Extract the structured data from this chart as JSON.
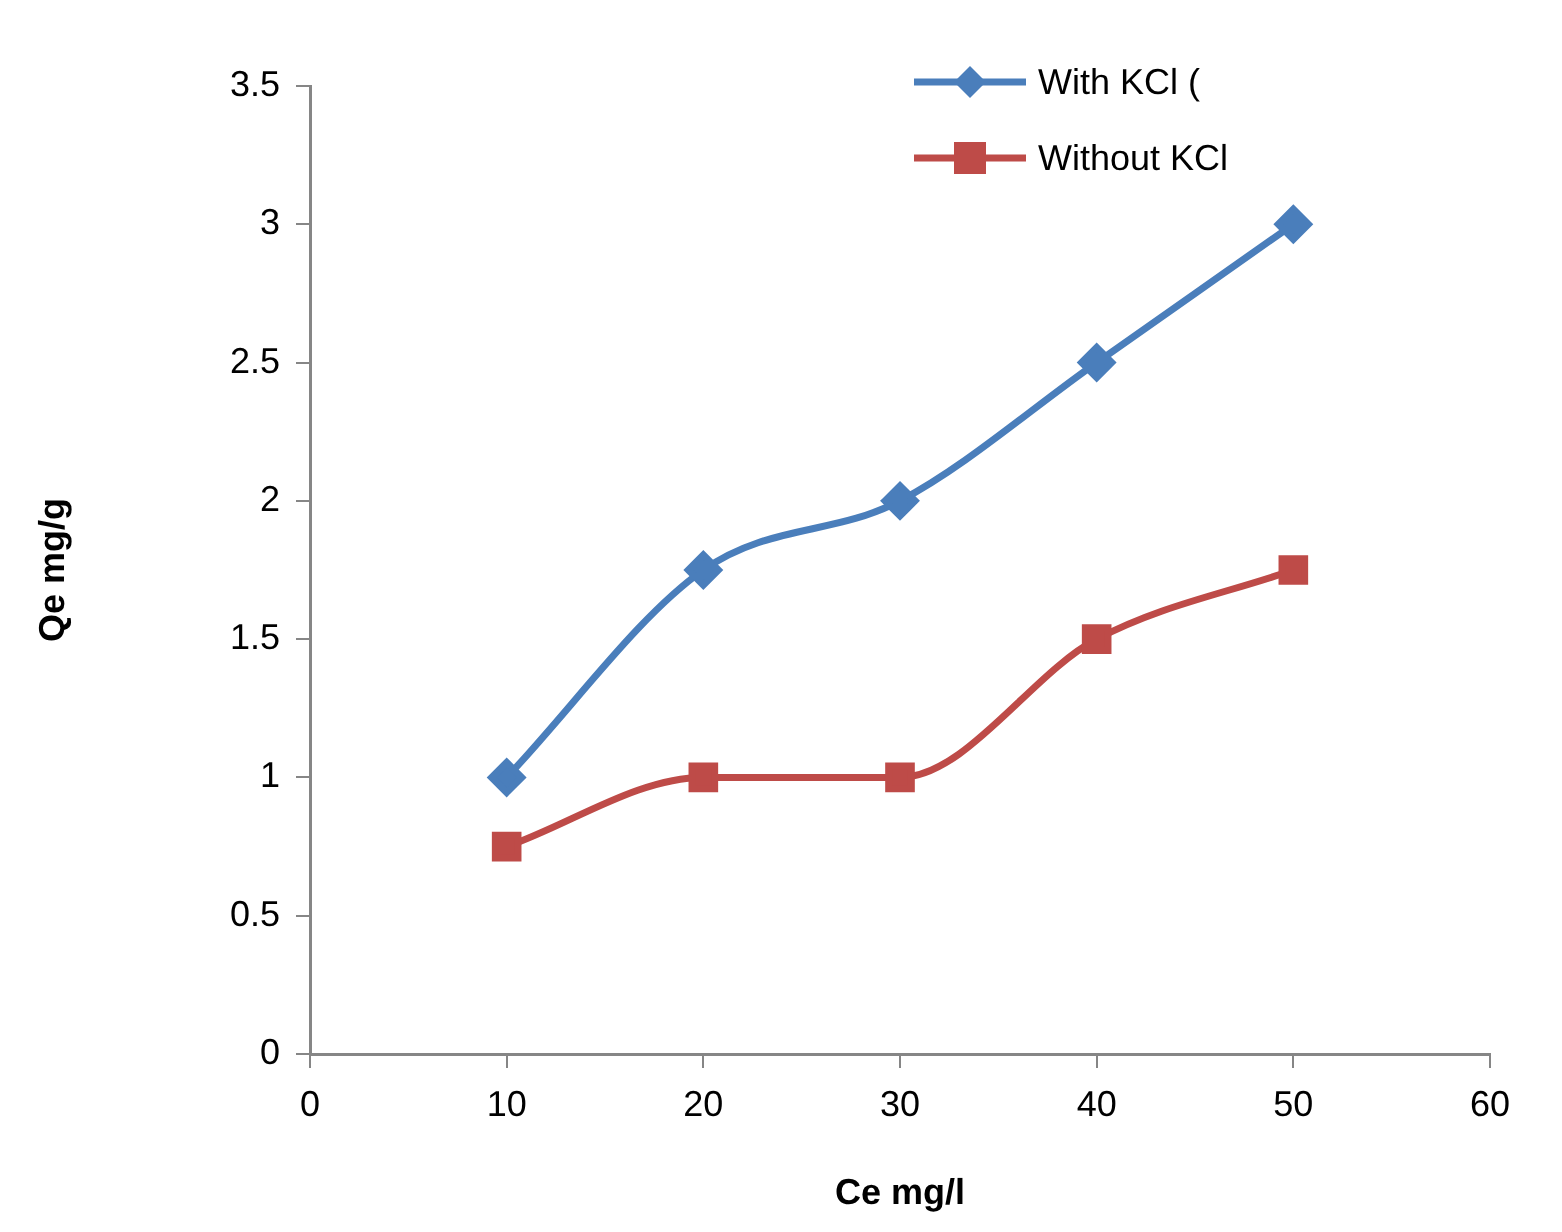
{
  "chart_data": {
    "type": "line",
    "xlabel": "Ce mg/l",
    "ylabel": "Qe mg/g",
    "x": [
      10,
      20,
      30,
      40,
      50
    ],
    "series": [
      {
        "name": "With KCl (",
        "color": "#4a7ebb",
        "marker": "diamond",
        "values": [
          1,
          1.75,
          2,
          2.5,
          3
        ]
      },
      {
        "name": "Without KCl",
        "color": "#be4b48",
        "marker": "square",
        "values": [
          0.75,
          1,
          1,
          1.5,
          1.75
        ]
      }
    ],
    "xlim": [
      0,
      60
    ],
    "xticks": [
      0,
      10,
      20,
      30,
      40,
      50,
      60
    ],
    "ylim": [
      0,
      3.5
    ],
    "yticks": [
      0,
      0.5,
      1,
      1.5,
      2,
      2.5,
      3,
      3.5
    ],
    "grid": false,
    "legend": "top right",
    "line_style": "solid"
  }
}
